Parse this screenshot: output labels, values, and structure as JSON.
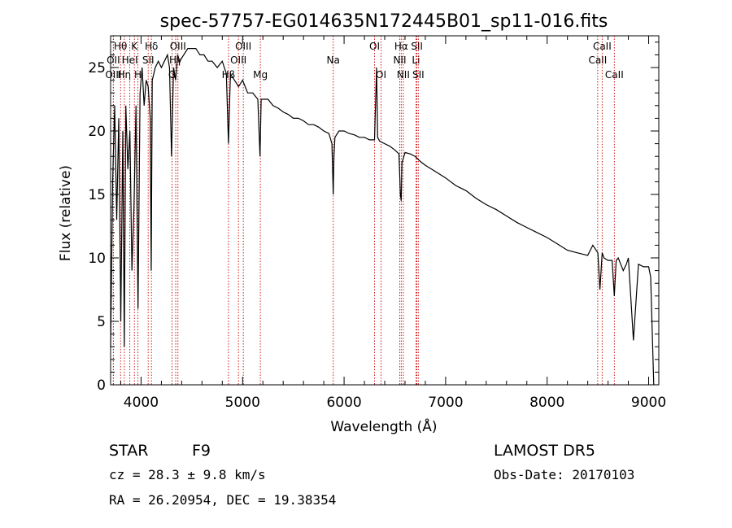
{
  "chart_data": {
    "type": "line",
    "title": "spec-57757-EG014635N172445B01_sp11-016.fits",
    "xlabel": "Wavelength (Å)",
    "ylabel": "Flux (relative)",
    "xlim": [
      3700,
      9100
    ],
    "ylim": [
      0,
      27.5
    ],
    "xticks": [
      4000,
      5000,
      6000,
      7000,
      8000,
      9000
    ],
    "yticks": [
      0,
      5,
      10,
      15,
      20,
      25
    ],
    "line_color": "#000000",
    "marker_color": "#cc0000",
    "series": [
      {
        "x": [
          3700,
          3720,
          3740,
          3760,
          3780,
          3800,
          3820,
          3835,
          3850,
          3870,
          3890,
          3910,
          3930,
          3950,
          3970,
          3990,
          4010,
          4030,
          4050,
          4070,
          4090,
          4100,
          4110,
          4140,
          4170,
          4200,
          4230,
          4260,
          4280,
          4300,
          4320,
          4340,
          4360,
          4380,
          4420,
          4460,
          4500,
          4540,
          4580,
          4620,
          4660,
          4700,
          4750,
          4800,
          4840,
          4861,
          4880,
          4920,
          4960,
          5000,
          5050,
          5100,
          5150,
          5172,
          5183,
          5200,
          5250,
          5300,
          5350,
          5400,
          5450,
          5500,
          5550,
          5600,
          5650,
          5700,
          5750,
          5800,
          5850,
          5880,
          5893,
          5900,
          5910,
          5950,
          6000,
          6050,
          6100,
          6150,
          6200,
          6250,
          6300,
          6320,
          6330,
          6350,
          6400,
          6450,
          6500,
          6540,
          6555,
          6563,
          6570,
          6600,
          6650,
          6700,
          6750,
          6800,
          6900,
          7000,
          7100,
          7200,
          7300,
          7400,
          7500,
          7600,
          7700,
          7800,
          7900,
          8000,
          8100,
          8200,
          8300,
          8400,
          8450,
          8500,
          8520,
          8542,
          8560,
          8600,
          8640,
          8662,
          8680,
          8700,
          8750,
          8780,
          8800,
          8850,
          8900,
          8950,
          9000,
          9020,
          9050
        ],
        "y": [
          3,
          16,
          22,
          13,
          21,
          5,
          20,
          3,
          22,
          17,
          20,
          9,
          14,
          22,
          6,
          23,
          25,
          22,
          24,
          23.5,
          21,
          9,
          24,
          25,
          25.5,
          25,
          25.5,
          26,
          25,
          18,
          25,
          24,
          26,
          25.5,
          26,
          26.5,
          26.5,
          26.5,
          26,
          26,
          25.5,
          25.5,
          25,
          25.5,
          24.5,
          19,
          24.5,
          24,
          23.5,
          24,
          23,
          23,
          22.5,
          18,
          22.5,
          22.5,
          22.5,
          22,
          21.8,
          21.5,
          21.3,
          21,
          21,
          20.8,
          20.5,
          20.5,
          20.3,
          20,
          19.8,
          19,
          15,
          18,
          19.5,
          20,
          20,
          19.8,
          19.7,
          19.5,
          19.5,
          19.3,
          19.3,
          25,
          19.5,
          19.2,
          19,
          18.8,
          18.5,
          18.2,
          15,
          14.5,
          17.5,
          18.3,
          18.2,
          18,
          17.6,
          17.3,
          16.8,
          16.3,
          15.7,
          15.3,
          14.7,
          14.2,
          13.8,
          13.3,
          12.8,
          12.4,
          12,
          11.6,
          11.1,
          10.6,
          10.4,
          10.2,
          11,
          10.4,
          7.5,
          10.4,
          10,
          9.8,
          9.8,
          7,
          9.8,
          10,
          9,
          9.5,
          10,
          3.5,
          9.5,
          9.3,
          9.3,
          8.5,
          0
        ]
      }
    ],
    "line_markers": [
      {
        "label": "Hθ",
        "x": 3798,
        "row": 1
      },
      {
        "label": "OII",
        "x": 3727,
        "row": 2
      },
      {
        "label": "OIII",
        "x": 3727,
        "row": 3
      },
      {
        "label": "Hη",
        "x": 3835,
        "row": 3
      },
      {
        "label": "HeI",
        "x": 3889,
        "row": 2
      },
      {
        "label": "K",
        "x": 3934,
        "row": 1
      },
      {
        "label": "H",
        "x": 3969,
        "row": 3
      },
      {
        "label": "SII",
        "x": 4070,
        "row": 2
      },
      {
        "label": "Hδ",
        "x": 4102,
        "row": 1
      },
      {
        "label": "G",
        "x": 4305,
        "row": 3
      },
      {
        "label": "Hγ",
        "x": 4341,
        "row": 2
      },
      {
        "label": "OIII",
        "x": 4363,
        "row": 1
      },
      {
        "label": "Hβ",
        "x": 4861,
        "row": 3
      },
      {
        "label": "OIII",
        "x": 4959,
        "row": 2
      },
      {
        "label": "OIII",
        "x": 5007,
        "row": 1
      },
      {
        "label": "Mg",
        "x": 5175,
        "row": 3
      },
      {
        "label": "Na",
        "x": 5893,
        "row": 2
      },
      {
        "label": "OI",
        "x": 6300,
        "row": 1
      },
      {
        "label": "OI",
        "x": 6364,
        "row": 3
      },
      {
        "label": "NII",
        "x": 6548,
        "row": 2
      },
      {
        "label": "Hα",
        "x": 6563,
        "row": 1
      },
      {
        "label": "NII",
        "x": 6583,
        "row": 3
      },
      {
        "label": "Li",
        "x": 6708,
        "row": 2
      },
      {
        "label": "SII",
        "x": 6717,
        "row": 1
      },
      {
        "label": "SII",
        "x": 6731,
        "row": 3
      },
      {
        "label": "CaII",
        "x": 8498,
        "row": 2
      },
      {
        "label": "CaII",
        "x": 8542,
        "row": 1
      },
      {
        "label": "CaII",
        "x": 8662,
        "row": 3
      }
    ]
  },
  "info": {
    "object_class": "STAR",
    "subclass": "F9",
    "survey": "LAMOST DR5",
    "redshift": "cz = 28.3 ± 9.8 km/s",
    "obs_date": "Obs-Date: 20170103",
    "coords": "RA =  26.20954, DEC =  19.38354"
  }
}
